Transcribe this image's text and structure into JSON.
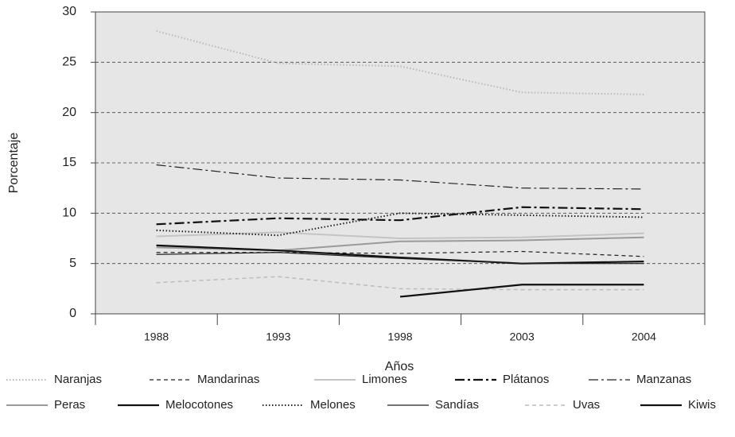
{
  "chart_data": {
    "type": "line",
    "x_label": "Años",
    "y_label": "Porcentaje",
    "categories": [
      "1988",
      "1993",
      "1998",
      "2003",
      "2004"
    ],
    "ylim": [
      0,
      30
    ],
    "yticks": [
      0,
      5,
      10,
      15,
      20,
      25,
      30
    ],
    "grid": true,
    "series": [
      {
        "name": "Naranjas",
        "color": "#b8b8b8",
        "line_style": "dotted",
        "linewidth": 2,
        "values": [
          28.1,
          24.9,
          24.6,
          22.0,
          21.8
        ]
      },
      {
        "name": "Mandarinas",
        "color": "#222222",
        "line_style": "dashed",
        "linewidth": 1.2,
        "values": [
          6.1,
          6.1,
          6.0,
          6.2,
          5.7
        ]
      },
      {
        "name": "Limones",
        "color": "#c4c4c4",
        "line_style": "solid",
        "linewidth": 2,
        "values": [
          7.7,
          8.1,
          7.5,
          7.6,
          8.0
        ]
      },
      {
        "name": "Plátanos",
        "color": "#111111",
        "line_style": "dashdot",
        "linewidth": 2.2,
        "values": [
          8.9,
          9.5,
          9.3,
          10.6,
          10.4
        ]
      },
      {
        "name": "Manzanas",
        "color": "#222222",
        "line_style": "dashdot",
        "linewidth": 1.2,
        "values": [
          14.8,
          13.5,
          13.3,
          12.5,
          12.4
        ]
      },
      {
        "name": "Peras",
        "color": "#9a9a9a",
        "line_style": "solid",
        "linewidth": 2,
        "values": [
          6.6,
          6.3,
          7.2,
          7.3,
          7.6
        ]
      },
      {
        "name": "Melocotones",
        "color": "#111111",
        "line_style": "solid",
        "linewidth": 2.2,
        "values": [
          6.8,
          6.3,
          5.6,
          5.0,
          5.2
        ]
      },
      {
        "name": "Melones",
        "color": "#222222",
        "line_style": "dotted",
        "linewidth": 2,
        "values": [
          8.3,
          7.8,
          10.0,
          9.8,
          9.6
        ]
      },
      {
        "name": "Sandías",
        "color": "#222222",
        "line_style": "solid",
        "linewidth": 1.2,
        "values": [
          5.9,
          6.1,
          5.5,
          5.0,
          5.0
        ]
      },
      {
        "name": "Uvas",
        "color": "#bcbcbc",
        "line_style": "dashed",
        "linewidth": 1.5,
        "values": [
          3.1,
          3.7,
          2.5,
          2.4,
          2.4
        ]
      },
      {
        "name": "Kiwis",
        "color": "#111111",
        "line_style": "solid",
        "linewidth": 2.2,
        "values": [
          null,
          null,
          1.7,
          2.9,
          2.9
        ]
      }
    ]
  }
}
